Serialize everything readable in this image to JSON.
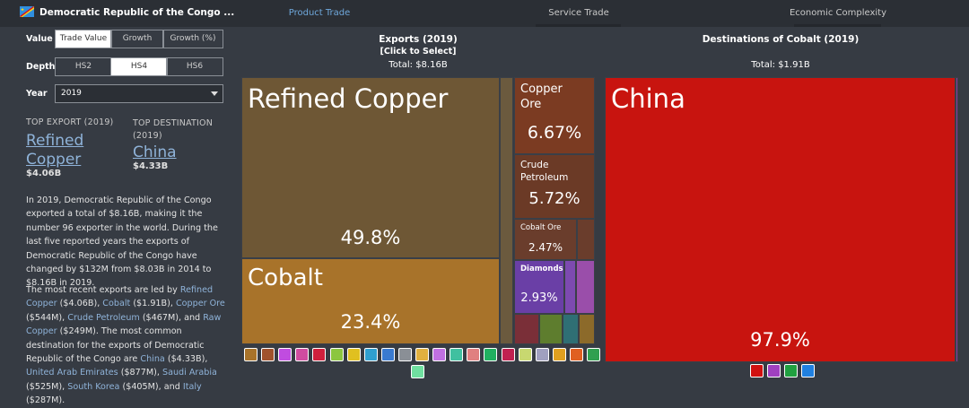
{
  "nav": {
    "country": "Democratic Republic of the Congo ...",
    "tabs": [
      "Product Trade",
      "Service Trade",
      "Economic Complexity"
    ]
  },
  "controls": {
    "value_label": "Value",
    "value_options": [
      "Trade Value",
      "Growth",
      "Growth (%)"
    ],
    "depth_label": "Depth",
    "depth_options": [
      "HS2",
      "HS4",
      "HS6"
    ],
    "year_label": "Year",
    "year": "2019"
  },
  "highlights": {
    "top_export_label": "TOP EXPORT (2019)",
    "top_export": "Refined Copper",
    "top_export_value": "$4.06B",
    "top_destination_label": "TOP DESTINATION (2019)",
    "top_destination": "China",
    "top_destination_value": "$4.33B"
  },
  "summary": {
    "paragraph_1": "In 2019, Democratic Republic of the Congo exported a total of $8.16B, making it the number 96 exporter in the world. During the last five reported years the exports of Democratic Republic of the Congo have changed by $132M from $8.03B in 2014 to $8.16B in 2019.",
    "paragraph_2": [
      "The most recent exports are led by ",
      "Refined Copper",
      " ($4.06B), ",
      "Cobalt",
      " ($1.91B), ",
      "Copper Ore",
      " ($544M), ",
      "Crude Petroleum",
      " ($467M), and ",
      "Raw Copper",
      " ($249M). The most common destination for the exports of Democratic Republic of the Congo are ",
      "China",
      " ($4.33B), ",
      "United Arab Emirates",
      " ($877M), ",
      "Saudi Arabia",
      " ($525M), ",
      "South Korea",
      " ($405M), and ",
      "Italy",
      " ($287M)."
    ]
  },
  "exports": {
    "title": "Exports (2019)",
    "subtitle": "[Click to Select]",
    "total": "Total: $8.16B",
    "tiles": [
      {
        "label": "Refined Copper",
        "share": "49.8%"
      },
      {
        "label": "Cobalt",
        "share": "23.4%"
      },
      {
        "label": "Copper Ore",
        "share": "6.67%"
      },
      {
        "label": "Crude Petroleum",
        "share": "5.72%"
      },
      {
        "label": "Cobalt Ore",
        "share": "2.47%"
      },
      {
        "label": "Diamonds",
        "share": "2.93%"
      }
    ]
  },
  "destinations": {
    "title": "Destinations of Cobalt (2019)",
    "total": "Total: $1.91B",
    "tiles": [
      {
        "label": "China",
        "share": "97.9%"
      }
    ]
  }
}
